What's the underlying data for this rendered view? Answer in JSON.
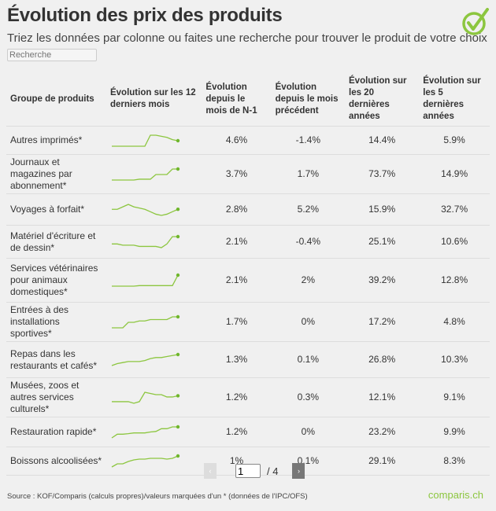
{
  "title": "Évolution des prix des produits",
  "subtitle": "Triez les données par colonne ou faites une recherche pour trouver le produit de votre choix",
  "search": {
    "placeholder": "Recherche"
  },
  "accent": "#8cc63f",
  "logo_icon": "check-circle-icon",
  "headers": [
    "Groupe de produits",
    "Évolution sur les 12 derniers mois",
    "Évolution depuis le mois de N-1",
    "Évolution depuis le mois précédent",
    "Évolution sur les 20 dernières années",
    "Évolution sur les 5 dernières années"
  ],
  "rows": [
    {
      "name": "Autres imprimés*",
      "spark": [
        0,
        0,
        0,
        0,
        0,
        0,
        0,
        10,
        10,
        9,
        8,
        6,
        5
      ],
      "n1": "4.6%",
      "prev": "-1.4%",
      "y20": "14.4%",
      "y5": "5.9%"
    },
    {
      "name": "Journaux et magazines par abonnement*",
      "spark": [
        0,
        0,
        0,
        0,
        0,
        0.3,
        0.3,
        0.3,
        2,
        2,
        2,
        4,
        4
      ],
      "n1": "3.7%",
      "prev": "1.7%",
      "y20": "73.7%",
      "y5": "14.9%"
    },
    {
      "name": "Voyages à forfait*",
      "spark": [
        6,
        6,
        7,
        8,
        7,
        6.5,
        6,
        5,
        4,
        3.5,
        4,
        5,
        6
      ],
      "n1": "2.8%",
      "prev": "5.2%",
      "y20": "15.9%",
      "y5": "32.7%"
    },
    {
      "name": "Matériel d'écriture et de dessin*",
      "spark": [
        3,
        3,
        2.5,
        2.5,
        2.5,
        2,
        2,
        2,
        2,
        1.5,
        3,
        6,
        6
      ],
      "n1": "2.1%",
      "prev": "-0.4%",
      "y20": "25.1%",
      "y5": "10.6%"
    },
    {
      "name": "Services vétérinaires pour animaux domestiques*",
      "spark": [
        0,
        0,
        0,
        0,
        0,
        0.2,
        0.2,
        0.2,
        0.2,
        0.2,
        0.2,
        0.2,
        4
      ],
      "n1": "2.1%",
      "prev": "2%",
      "y20": "39.2%",
      "y5": "12.8%"
    },
    {
      "name": "Entrées à des installations sportives*",
      "spark": [
        0,
        0,
        0,
        2,
        2,
        2.5,
        2.5,
        3,
        3,
        3,
        3,
        4,
        4
      ],
      "n1": "1.7%",
      "prev": "0%",
      "y20": "17.2%",
      "y5": "4.8%"
    },
    {
      "name": "Repas dans les restaurants et cafés*",
      "spark": [
        0,
        1,
        1.5,
        2,
        2,
        2,
        2.5,
        3.5,
        4,
        4,
        4.5,
        5,
        5.5
      ],
      "n1": "1.3%",
      "prev": "0.1%",
      "y20": "26.8%",
      "y5": "10.3%"
    },
    {
      "name": "Musées, zoos et autres services culturels*",
      "spark": [
        2,
        2,
        2,
        2,
        1.3,
        2,
        6,
        5.5,
        5,
        5,
        4,
        4,
        4.5
      ],
      "n1": "1.2%",
      "prev": "0.3%",
      "y20": "12.1%",
      "y5": "9.1%"
    },
    {
      "name": "Restauration rapide*",
      "spark": [
        0,
        2,
        2,
        2.3,
        2.7,
        2.7,
        2.7,
        3.2,
        3.5,
        5,
        5,
        6,
        6
      ],
      "n1": "1.2%",
      "prev": "0%",
      "y20": "23.2%",
      "y5": "9.9%"
    },
    {
      "name": "Boissons alcoolisées*",
      "spark": [
        0,
        2,
        2,
        3.5,
        4.5,
        5,
        5,
        5.5,
        5.5,
        5.5,
        5,
        5.5,
        7
      ],
      "n1": "1%",
      "prev": "0.1%",
      "y20": "29.1%",
      "y5": "8.3%"
    }
  ],
  "pagination": {
    "current": "1",
    "total": "/ 4",
    "prev": "‹",
    "next": "›"
  },
  "source": "Source : KOF/Comparis (calculs propres)/valeurs marquées d'un * (données de l'IPC/OFS)",
  "brand": "comparis.ch"
}
